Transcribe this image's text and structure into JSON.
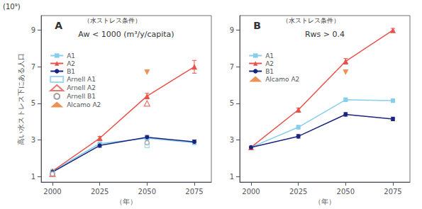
{
  "chart_data": [
    {
      "type": "line",
      "xlabel": "（年）",
      "ylabel": "高い水ストレス下にある人口",
      "annotations": [
        "A",
        "（水ストレス条件）",
        "Aw < 1000 (m³/y/capita)",
        "(10⁹)"
      ],
      "x": [
        2000,
        2025,
        2050,
        2075
      ],
      "xlim": [
        1994,
        2084
      ],
      "xticks": [
        2000,
        2025,
        2050,
        2075
      ],
      "ylim": [
        0.7,
        9.8
      ],
      "yticks": [
        1,
        3,
        5,
        7,
        9
      ],
      "grid": false,
      "legend": "upper left",
      "series": [
        {
          "name": "A1",
          "type": "line",
          "color": "#87CEEB",
          "marker": "square",
          "values": [
            1.3,
            2.8,
            3.1,
            2.85
          ],
          "errors": [
            0.05,
            0.1,
            0.12,
            0.1
          ]
        },
        {
          "name": "A2",
          "type": "line",
          "color": "#E8524A",
          "marker": "triangle",
          "values": [
            1.3,
            3.1,
            5.4,
            7.0
          ],
          "errors": [
            0.05,
            0.1,
            0.15,
            0.35
          ]
        },
        {
          "name": "B1",
          "type": "line",
          "color": "#1A237E",
          "marker": "circle",
          "values": [
            1.25,
            2.7,
            3.15,
            2.9
          ],
          "errors": [
            0.05,
            0.1,
            0.1,
            0.1
          ]
        },
        {
          "name": "Arnell A1",
          "type": "scatter",
          "color": "#87CEEB",
          "marker": "open-square",
          "values": [
            1.15,
            null,
            2.7,
            null
          ]
        },
        {
          "name": "Arnell A2",
          "type": "scatter",
          "color": "#E8524A",
          "marker": "open-triangle",
          "values": [
            1.15,
            null,
            5.0,
            null
          ]
        },
        {
          "name": "Arnell B1",
          "type": "scatter",
          "color": "#888888",
          "marker": "open-circle",
          "values": [
            1.15,
            null,
            2.85,
            null
          ]
        },
        {
          "name": "Alcamo A2",
          "type": "scatter",
          "color": "#E8752A",
          "marker": "triangle-down",
          "values": [
            null,
            null,
            6.7,
            null
          ]
        }
      ]
    },
    {
      "type": "line",
      "xlabel": "（年）",
      "annotations": [
        "B",
        "（水ストレス条件）",
        "Rws > 0.4"
      ],
      "x": [
        2000,
        2025,
        2050,
        2075
      ],
      "xlim": [
        1994,
        2084
      ],
      "xticks": [
        2000,
        2025,
        2050,
        2075
      ],
      "ylim": [
        0.7,
        9.8
      ],
      "yticks": [
        1,
        3,
        5,
        7,
        9
      ],
      "grid": false,
      "legend": "upper left",
      "series": [
        {
          "name": "A1",
          "type": "line",
          "color": "#87CEEB",
          "marker": "square",
          "values": [
            2.6,
            3.7,
            5.2,
            5.15
          ],
          "errors": [
            0.05,
            0.1,
            0.1,
            0.1
          ]
        },
        {
          "name": "A2",
          "type": "line",
          "color": "#E8524A",
          "marker": "triangle",
          "values": [
            2.6,
            4.65,
            7.3,
            9.0
          ],
          "errors": [
            0.05,
            0.1,
            0.15,
            0.1
          ]
        },
        {
          "name": "B1",
          "type": "line",
          "color": "#1A237E",
          "marker": "circle",
          "values": [
            2.6,
            3.2,
            4.4,
            4.15
          ],
          "errors": [
            0.05,
            0.1,
            0.1,
            0.1
          ]
        },
        {
          "name": "Alcamo A2",
          "type": "scatter",
          "color": "#E8752A",
          "marker": "triangle-down",
          "values": [
            null,
            null,
            6.7,
            null
          ]
        }
      ]
    }
  ]
}
